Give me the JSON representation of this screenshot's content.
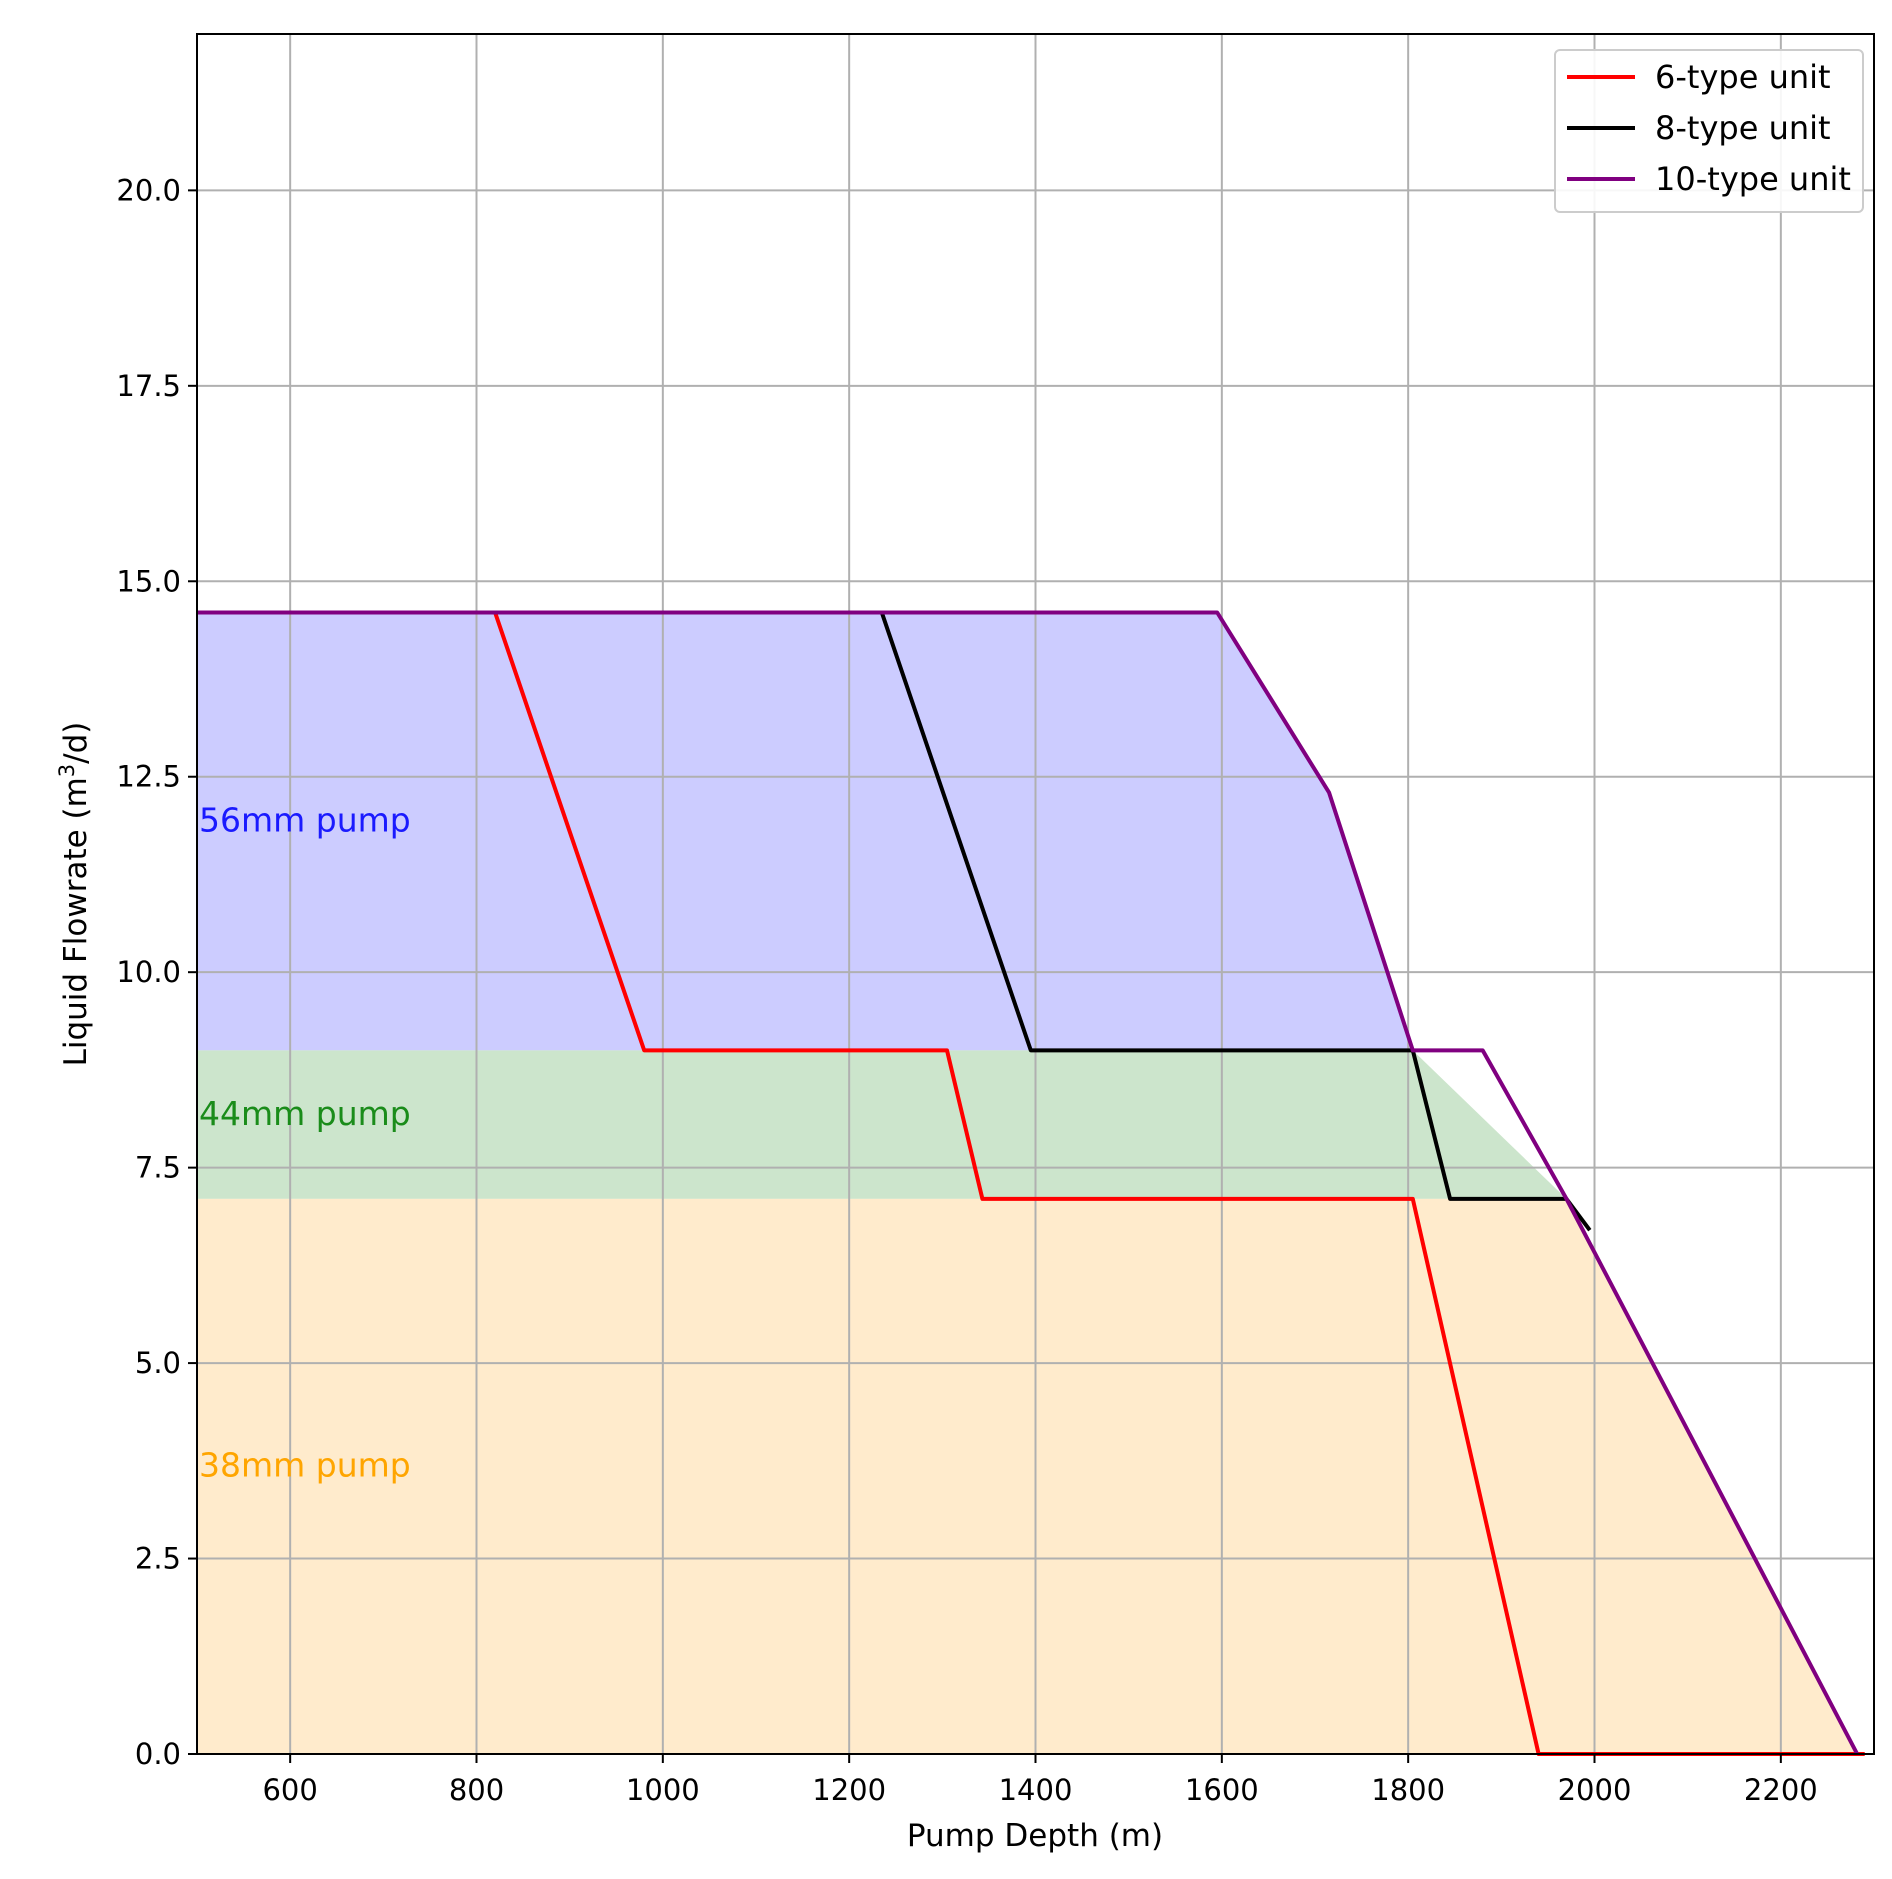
{
  "chart_data": {
    "type": "line",
    "xlabel": "Pump Depth (m)",
    "ylabel_main": "Liquid Flowrate (m",
    "ylabel_sup": "3",
    "ylabel_tail": "/d)",
    "xlim": [
      500,
      2300
    ],
    "ylim": [
      0,
      22
    ],
    "xticks": [
      600,
      800,
      1000,
      1200,
      1400,
      1600,
      1800,
      2000,
      2200
    ],
    "yticks": [
      0.0,
      2.5,
      5.0,
      7.5,
      10.0,
      12.5,
      15.0,
      17.5,
      20.0
    ],
    "ytick_labels": [
      "0.0",
      "2.5",
      "5.0",
      "7.5",
      "10.0",
      "12.5",
      "15.0",
      "17.5",
      "20.0"
    ],
    "grid": true,
    "legend_position": "top-right",
    "zones": [
      {
        "label": "56mm pump",
        "ymin": 9.0,
        "ymax": 14.6,
        "fill": "#ccccff",
        "text_color": "#1a1aff",
        "label_y": 11.95
      },
      {
        "label": "44mm pump",
        "ymin": 7.1,
        "ymax": 9.0,
        "fill": "#cce5cc",
        "text_color": "#1a8c1a",
        "label_y": 8.2
      },
      {
        "label": "38mm pump",
        "ymin": 0.0,
        "ymax": 7.1,
        "fill": "#ffebcc",
        "text_color": "#ffa500",
        "label_y": 3.7
      }
    ],
    "series": [
      {
        "name": "6-type unit",
        "color": "#ff0000",
        "x": [
          500,
          820,
          980,
          1305,
          1343,
          1805,
          1940,
          2290
        ],
        "y": [
          14.6,
          14.6,
          9.0,
          9.0,
          7.1,
          7.1,
          0.0,
          0.0
        ]
      },
      {
        "name": "8-type unit",
        "color": "#000000",
        "x": [
          500,
          1235,
          1395,
          1805,
          1845,
          1970,
          1995
        ],
        "y": [
          14.6,
          14.6,
          9.0,
          9.0,
          7.1,
          7.1,
          6.7
        ]
      },
      {
        "name": "10-type unit",
        "color": "#800080",
        "x": [
          500,
          1595,
          1715,
          1805,
          1880,
          1970,
          2282
        ],
        "y": [
          14.6,
          14.6,
          12.3,
          9.0,
          9.0,
          7.1,
          0.0
        ]
      }
    ]
  }
}
